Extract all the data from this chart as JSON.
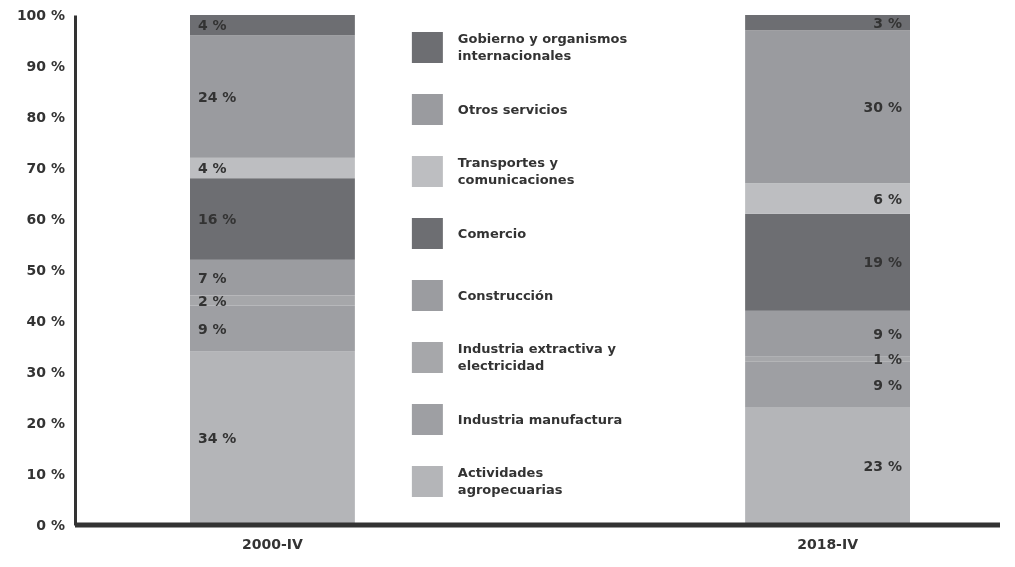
{
  "chart_data": {
    "type": "bar",
    "stacked": true,
    "categories": [
      "2000-IV",
      "2018-IV"
    ],
    "ylim": [
      0,
      100
    ],
    "yticks": [
      {
        "value": 0,
        "label": "0 %"
      },
      {
        "value": 10,
        "label": "10 %"
      },
      {
        "value": 20,
        "label": "20 %"
      },
      {
        "value": 30,
        "label": "30 %"
      },
      {
        "value": 40,
        "label": "40 %"
      },
      {
        "value": 50,
        "label": "50 %"
      },
      {
        "value": 60,
        "label": "60 %"
      },
      {
        "value": 70,
        "label": "70 %"
      },
      {
        "value": 80,
        "label": "80 %"
      },
      {
        "value": 90,
        "label": "90 %"
      },
      {
        "value": 100,
        "label": "100 %"
      }
    ],
    "legend": "center",
    "grid": false,
    "series": [
      {
        "name": "Actividades agropecuarias",
        "color": "#b4b5b8",
        "values": [
          34,
          23
        ],
        "value_labels": [
          "34 %",
          "23 %"
        ]
      },
      {
        "name": "Industria manufactura",
        "color": "#9e9fa3",
        "values": [
          9,
          9
        ],
        "value_labels": [
          "9 %",
          "9 %"
        ]
      },
      {
        "name": "Industria extractiva y electricidad",
        "color": "#a6a7aa",
        "values": [
          2,
          1
        ],
        "value_labels": [
          "2 %",
          "1 %"
        ]
      },
      {
        "name": "Construcción",
        "color": "#9b9ca0",
        "values": [
          7,
          9
        ],
        "value_labels": [
          "7 %",
          "9 %"
        ]
      },
      {
        "name": "Comercio",
        "color": "#6d6e72",
        "values": [
          16,
          19
        ],
        "value_labels": [
          "16 %",
          "19 %"
        ]
      },
      {
        "name": "Transportes y comunicaciones",
        "color": "#bdbec1",
        "values": [
          4,
          6
        ],
        "value_labels": [
          "4 %",
          "6 %"
        ]
      },
      {
        "name": "Otros servicios",
        "color": "#9a9b9f",
        "values": [
          24,
          30
        ],
        "value_labels": [
          "24 %",
          "30 %"
        ]
      },
      {
        "name": "Gobierno y organismos internacionales",
        "color": "#6d6e72",
        "values": [
          4,
          3
        ],
        "value_labels": [
          "4 %",
          "3 %"
        ]
      }
    ]
  }
}
